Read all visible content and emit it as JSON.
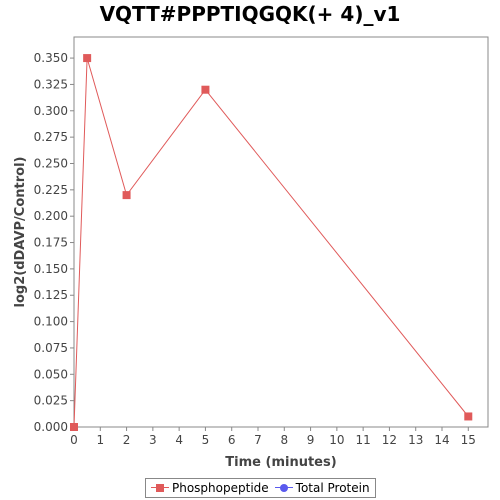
{
  "chart_data": {
    "type": "line",
    "title": "VQTT#PPPTIQGQK(+ 4)_v1",
    "xlabel": "Time (minutes)",
    "ylabel": "log2(dDAVP/Control)",
    "xlim": [
      0,
      15.75
    ],
    "ylim": [
      0,
      0.37
    ],
    "x_ticks": [
      0,
      1,
      2,
      3,
      4,
      5,
      6,
      7,
      8,
      9,
      10,
      11,
      12,
      13,
      14,
      15
    ],
    "x_tick_labels": [
      "0",
      "1",
      "2",
      "3",
      "4",
      "5",
      "6",
      "7",
      "8",
      "9",
      "10",
      "11",
      "12",
      "13",
      "14",
      "15"
    ],
    "y_ticks": [
      0,
      0.025,
      0.05,
      0.075,
      0.1,
      0.125,
      0.15,
      0.175,
      0.2,
      0.225,
      0.25,
      0.275,
      0.3,
      0.325,
      0.35
    ],
    "y_tick_labels": [
      "0.000",
      "0.025",
      "0.050",
      "0.075",
      "0.100",
      "0.125",
      "0.150",
      "0.175",
      "0.200",
      "0.225",
      "0.250",
      "0.275",
      "0.300",
      "0.325",
      "0.350"
    ],
    "grid": false,
    "legend_position": "bottom-center",
    "series": [
      {
        "name": "Phosphopeptide",
        "color": "#e05a5a",
        "marker": "square",
        "x": [
          0,
          0.5,
          2,
          5,
          15
        ],
        "y": [
          0,
          0.35,
          0.22,
          0.32,
          0.01
        ]
      },
      {
        "name": "Total Protein",
        "color": "#5a5aee",
        "marker": "circle",
        "x": [],
        "y": []
      }
    ]
  }
}
